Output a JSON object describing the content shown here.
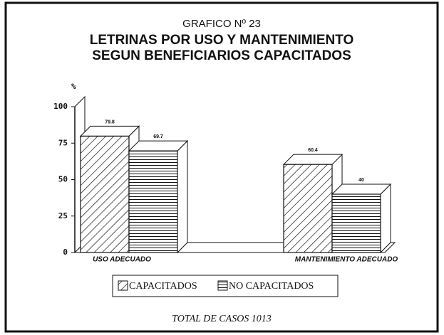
{
  "chart_data": {
    "type": "bar3d",
    "title": "GRAFICO Nº 23",
    "subtitle": [
      "LETRINAS POR USO Y MANTENIMIENTO",
      "SEGUN BENEFICIARIOS CAPACITADOS"
    ],
    "y_label": "%",
    "categories": [
      "USO ADECUADO",
      "MANTENIMIENTO ADECUADO"
    ],
    "series": [
      {
        "name": "CAPACITADOS",
        "color": "#111111",
        "hatch": "diagonal",
        "values": [
          79.8,
          60.4
        ]
      },
      {
        "name": "NO CAPACITADOS",
        "color": "#111111",
        "hatch": "horizontal",
        "values": [
          69.7,
          40
        ]
      }
    ],
    "ylim": [
      0,
      100
    ],
    "yticks": [
      0,
      25,
      50,
      75,
      100
    ],
    "note": "TOTAL DE CASOS 1013"
  }
}
